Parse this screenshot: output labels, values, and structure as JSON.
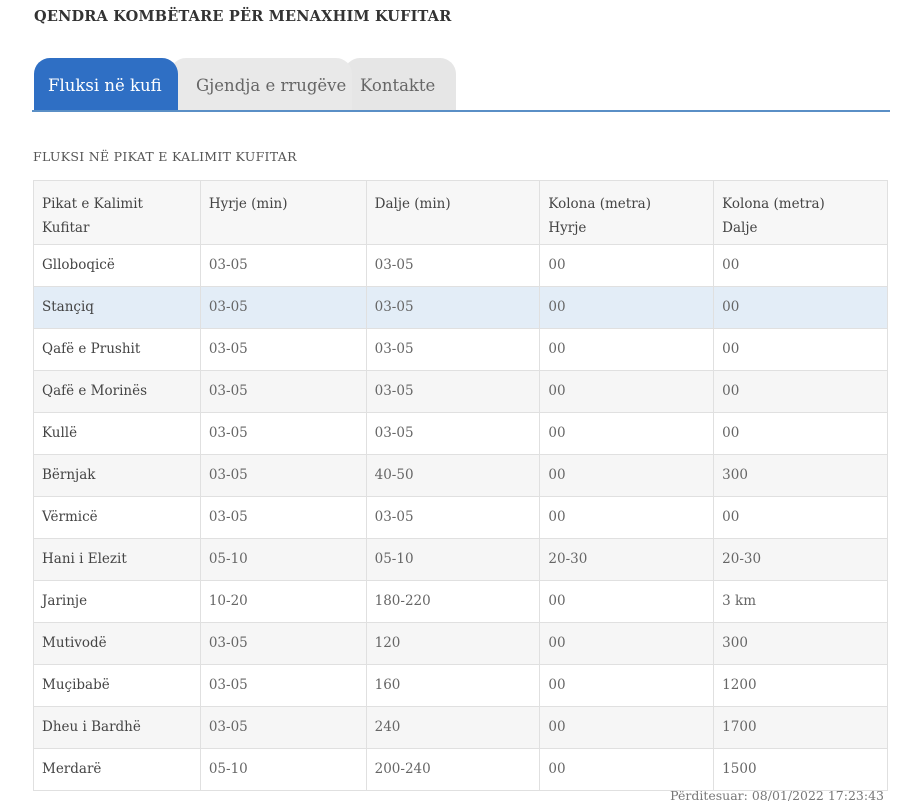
{
  "header": {
    "title": "QENDRA KOMBËTARE PËR MENAXHIM KUFITAR"
  },
  "tabs": [
    {
      "label": "Fluksi në kufi",
      "active": true
    },
    {
      "label": "Gjendja e rrugëve",
      "active": false
    },
    {
      "label": "Kontakte",
      "active": false
    }
  ],
  "section": {
    "title": "FLUKSI NË PIKAT E KALIMIT KUFITAR"
  },
  "table": {
    "columns": [
      {
        "line1": "Pikat e Kalimit",
        "line2": "Kufitar"
      },
      {
        "line1": "Hyrje (min)",
        "line2": ""
      },
      {
        "line1": "Dalje (min)",
        "line2": ""
      },
      {
        "line1": "Kolona (metra)",
        "line2": "Hyrje"
      },
      {
        "line1": "Kolona (metra)",
        "line2": "Dalje"
      }
    ],
    "rows": [
      [
        "Gllobоqicë",
        "03-05",
        "03-05",
        "00",
        "00"
      ],
      [
        "Stançiq",
        "03-05",
        "03-05",
        "00",
        "00"
      ],
      [
        "Qafë e Prushit",
        "03-05",
        "03-05",
        "00",
        "00"
      ],
      [
        "Qafë e Morinës",
        "03-05",
        "03-05",
        "00",
        "00"
      ],
      [
        "Kullë",
        "03-05",
        "03-05",
        "00",
        "00"
      ],
      [
        "Bërnjak",
        "03-05",
        "40-50",
        "00",
        "300"
      ],
      [
        "Vërmicë",
        "03-05",
        "03-05",
        "00",
        "00"
      ],
      [
        "Hani i Elezit",
        "05-10",
        "05-10",
        "20-30",
        "20-30"
      ],
      [
        "Jarinje",
        "10-20",
        "180-220",
        "00",
        "3 km"
      ],
      [
        "Mutivodë",
        "03-05",
        "120",
        "00",
        "300"
      ],
      [
        "Muçibabë",
        "03-05",
        "160",
        "00",
        "1200"
      ],
      [
        "Dheu i Bardhë",
        "03-05",
        "240",
        "00",
        "1700"
      ],
      [
        "Merdarë",
        "05-10",
        "200-240",
        "00",
        "1500"
      ]
    ],
    "highlighted_row": 1
  },
  "footer": {
    "updated": "Përditesuar: 08/01/2022 17:23:43"
  },
  "colors": {
    "accent": "#2f6fc4",
    "tab_border": "#5a8fc6",
    "row_highlight": "#e3edf7"
  }
}
